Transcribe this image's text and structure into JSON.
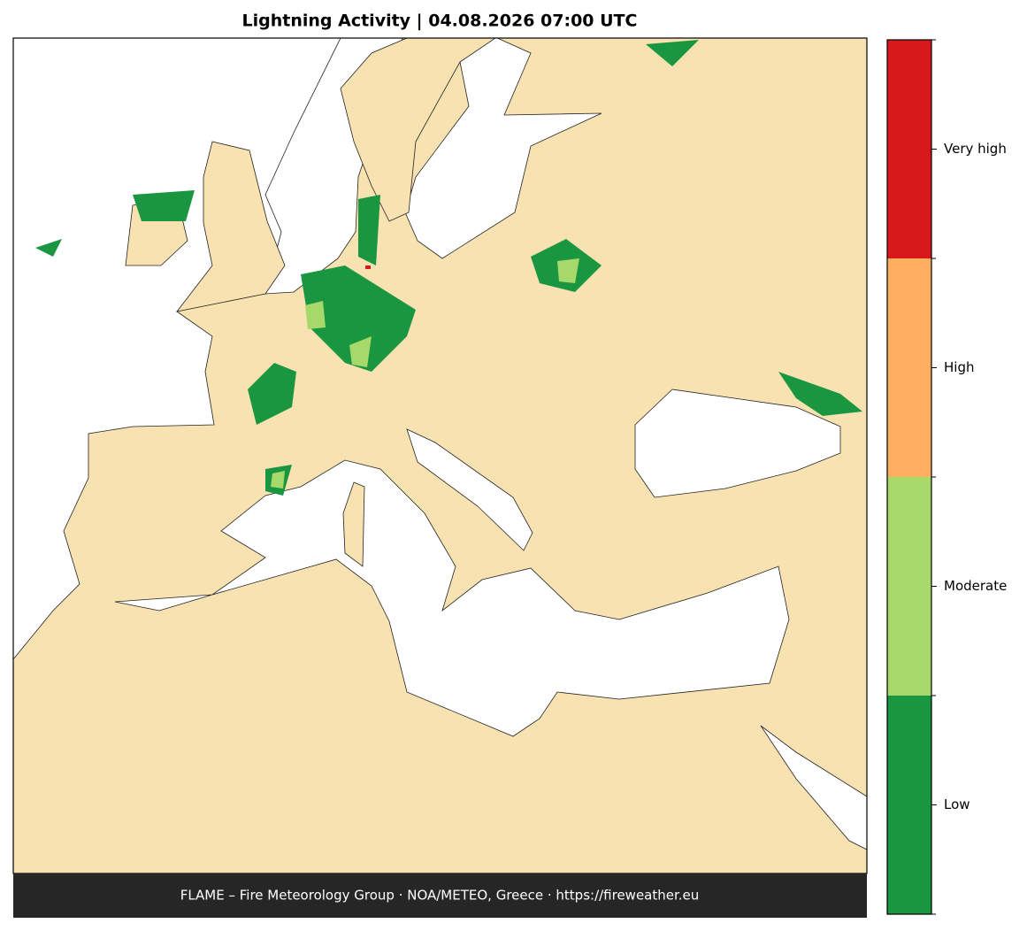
{
  "title": "Lightning Activity  |  04.08.2026 07:00 UTC",
  "footer": "FLAME – Fire Meteorology Group · NOA/METEO, Greece · https://fireweather.eu",
  "colorbar": {
    "levels": [
      {
        "label": "Low",
        "color": "#1a9641"
      },
      {
        "label": "Moderate",
        "color": "#a6d96a"
      },
      {
        "label": "High",
        "color": "#fdae61"
      },
      {
        "label": "Very high",
        "color": "#d7191c"
      }
    ]
  }
}
